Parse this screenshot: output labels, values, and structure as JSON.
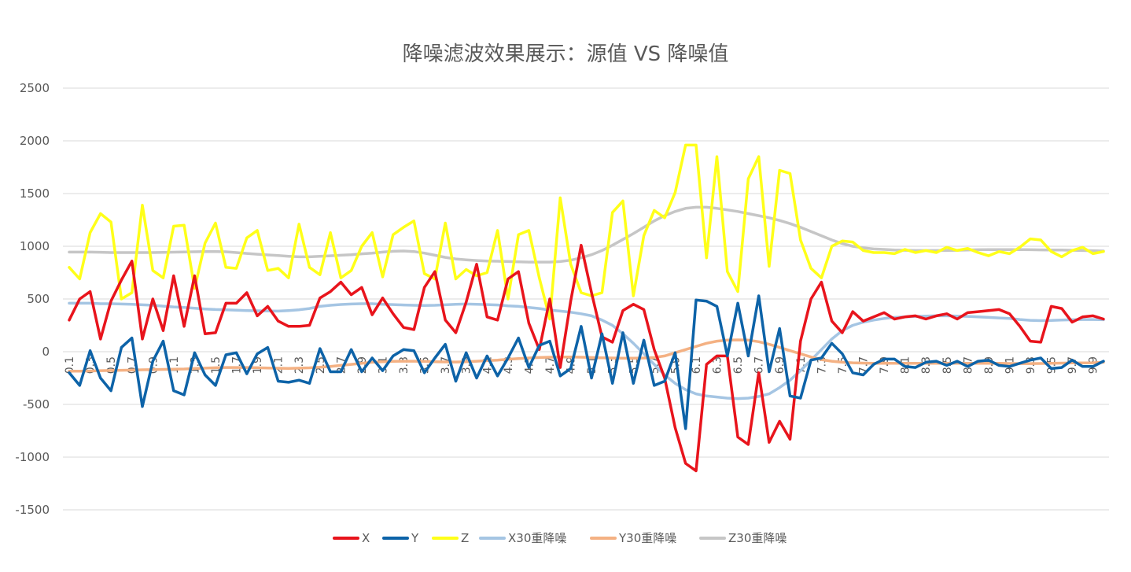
{
  "chart_data": {
    "type": "line",
    "title": "降噪滤波效果展示：源值 VS 降噪值",
    "xlabel": "",
    "ylabel": "",
    "ylim": [
      -1500,
      2500
    ],
    "yticks": [
      2500,
      2000,
      1500,
      1000,
      500,
      0,
      -500,
      -1000,
      -1500
    ],
    "grid": true,
    "legend_position": "bottom",
    "x": [
      0.1,
      0.2,
      0.3,
      0.4,
      0.5,
      0.6,
      0.7,
      0.8,
      0.9,
      1.0,
      1.1,
      1.2,
      1.3,
      1.4,
      1.5,
      1.6,
      1.7,
      1.8,
      1.9,
      2.0,
      2.1,
      2.2,
      2.3,
      2.4,
      2.5,
      2.6,
      2.7,
      2.8,
      2.9,
      3.0,
      3.1,
      3.2,
      3.3,
      3.4,
      3.5,
      3.6,
      3.7,
      3.8,
      3.9,
      4.0,
      4.1,
      4.2,
      4.3,
      4.4,
      4.5,
      4.6,
      4.7,
      4.8,
      4.9,
      5.0,
      5.1,
      5.2,
      5.3,
      5.4,
      5.5,
      5.6,
      5.7,
      5.8,
      5.9,
      6.0,
      6.1,
      6.2,
      6.3,
      6.4,
      6.5,
      6.6,
      6.7,
      6.8,
      6.9,
      7.0,
      7.1,
      7.2,
      7.3,
      7.4,
      7.5,
      7.6,
      7.7,
      7.8,
      7.9,
      8.0,
      8.1,
      8.2,
      8.3,
      8.4,
      8.5,
      8.6,
      8.7,
      8.8,
      8.9,
      9.0,
      9.1,
      9.2,
      9.3,
      9.4,
      9.5,
      9.6,
      9.7,
      9.8,
      9.9,
      10.0
    ],
    "x_tick_labels": [
      "0.1",
      "0.3",
      "0.5",
      "0.7",
      "0.9",
      "1.1",
      "1.3",
      "1.5",
      "1.7",
      "1.9",
      "2.1",
      "2.3",
      "2.5",
      "2.7",
      "2.9",
      "3.1",
      "3.3",
      "3.5",
      "3.7",
      "3.9",
      "4.1",
      "4.3",
      "4.5",
      "4.7",
      "4.9",
      "5.1",
      "5.3",
      "5.5",
      "5.7",
      "5.9",
      "6.1",
      "6.3",
      "6.5",
      "6.7",
      "6.9",
      "7.1",
      "7.3",
      "7.5",
      "7.7",
      "7.9",
      "8.1",
      "8.3",
      "8.5",
      "8.7",
      "8.9",
      "9.1",
      "9.3",
      "9.5",
      "9.7",
      "9.9"
    ],
    "series": [
      {
        "name": "X",
        "color": "#e8141c",
        "width": 3.5,
        "values": [
          300,
          500,
          570,
          120,
          480,
          680,
          860,
          120,
          500,
          200,
          720,
          240,
          720,
          170,
          180,
          460,
          460,
          560,
          340,
          430,
          290,
          240,
          240,
          250,
          510,
          570,
          660,
          540,
          610,
          350,
          510,
          360,
          230,
          210,
          610,
          760,
          300,
          180,
          470,
          830,
          330,
          300,
          690,
          760,
          270,
          20,
          500,
          -150,
          480,
          1010,
          560,
          140,
          90,
          390,
          450,
          400,
          20,
          -250,
          -720,
          -1060,
          -1130,
          -120,
          -40,
          -40,
          -810,
          -880,
          -200,
          -860,
          -660,
          -830,
          100,
          500,
          660,
          290,
          180,
          380,
          290,
          330,
          370,
          310,
          330,
          340,
          310,
          340,
          360,
          310,
          370,
          380,
          390,
          400,
          360,
          240,
          100,
          90,
          430,
          410,
          280,
          330,
          340,
          310
        ]
      },
      {
        "name": "Y",
        "color": "#0d63a8",
        "width": 3.5,
        "values": [
          -200,
          -320,
          10,
          -250,
          -370,
          40,
          130,
          -520,
          -90,
          100,
          -370,
          -410,
          -10,
          -220,
          -320,
          -30,
          -10,
          -210,
          -20,
          40,
          -280,
          -290,
          -270,
          -300,
          30,
          -190,
          -190,
          20,
          -190,
          -60,
          -180,
          -40,
          20,
          10,
          -200,
          -60,
          70,
          -280,
          -10,
          -250,
          -40,
          -230,
          -60,
          130,
          -150,
          60,
          100,
          -230,
          -160,
          240,
          -250,
          170,
          -300,
          180,
          -300,
          110,
          -320,
          -280,
          -10,
          -730,
          490,
          480,
          430,
          -40,
          460,
          -40,
          530,
          -190,
          220,
          -420,
          -440,
          -80,
          -60,
          80,
          -20,
          -200,
          -220,
          -120,
          -70,
          -70,
          -140,
          -150,
          -100,
          -90,
          -130,
          -90,
          -140,
          -90,
          -80,
          -130,
          -140,
          -110,
          -80,
          -60,
          -160,
          -150,
          -80,
          -140,
          -140,
          -90
        ]
      },
      {
        "name": "Z",
        "color": "#ffff19",
        "width": 3.5,
        "values": [
          800,
          690,
          1130,
          1310,
          1230,
          500,
          560,
          1390,
          770,
          700,
          1190,
          1200,
          600,
          1030,
          1220,
          800,
          790,
          1080,
          1150,
          770,
          790,
          700,
          1210,
          800,
          730,
          1130,
          700,
          770,
          1000,
          1130,
          710,
          1110,
          1180,
          1240,
          740,
          690,
          1220,
          690,
          780,
          720,
          750,
          1150,
          500,
          1110,
          1150,
          700,
          310,
          1460,
          830,
          560,
          530,
          560,
          1320,
          1430,
          530,
          1100,
          1340,
          1270,
          1510,
          1960,
          1960,
          890,
          1850,
          760,
          570,
          1640,
          1850,
          810,
          1720,
          1690,
          1060,
          790,
          700,
          1000,
          1050,
          1040,
          960,
          940,
          940,
          930,
          970,
          940,
          960,
          940,
          990,
          960,
          980,
          940,
          910,
          950,
          930,
          990,
          1070,
          1060,
          950,
          900,
          960,
          990,
          930,
          950
        ]
      },
      {
        "name": "X30重降噪",
        "color": "#a5c5e3",
        "width": 3.5,
        "values": [
          460,
          460,
          460,
          455,
          455,
          452,
          450,
          445,
          440,
          432,
          425,
          420,
          412,
          405,
          400,
          397,
          393,
          390,
          388,
          386,
          385,
          390,
          398,
          410,
          430,
          440,
          448,
          452,
          455,
          455,
          450,
          447,
          443,
          440,
          438,
          440,
          445,
          450,
          452,
          450,
          447,
          443,
          435,
          430,
          420,
          410,
          395,
          385,
          375,
          360,
          340,
          300,
          250,
          170,
          80,
          -20,
          -120,
          -220,
          -300,
          -360,
          -400,
          -420,
          -430,
          -440,
          -445,
          -440,
          -425,
          -400,
          -340,
          -270,
          -180,
          -80,
          20,
          120,
          200,
          250,
          280,
          300,
          315,
          325,
          330,
          335,
          338,
          340,
          340,
          338,
          335,
          330,
          325,
          320,
          315,
          305,
          298,
          295,
          296,
          300,
          303,
          305,
          305,
          303
        ]
      },
      {
        "name": "Y30重降噪",
        "color": "#f4b183",
        "width": 3.5,
        "values": [
          -185,
          -185,
          -183,
          -180,
          -178,
          -176,
          -175,
          -172,
          -170,
          -168,
          -166,
          -164,
          -160,
          -156,
          -152,
          -150,
          -150,
          -150,
          -152,
          -155,
          -157,
          -158,
          -156,
          -153,
          -148,
          -140,
          -130,
          -120,
          -110,
          -100,
          -95,
          -92,
          -90,
          -90,
          -92,
          -95,
          -97,
          -98,
          -95,
          -90,
          -85,
          -80,
          -72,
          -65,
          -60,
          -55,
          -52,
          -50,
          -50,
          -52,
          -55,
          -58,
          -60,
          -62,
          -62,
          -60,
          -55,
          -40,
          -10,
          20,
          50,
          80,
          100,
          110,
          112,
          110,
          95,
          70,
          40,
          10,
          -20,
          -50,
          -75,
          -90,
          -100,
          -105,
          -108,
          -110,
          -110,
          -110,
          -110,
          -110,
          -110,
          -110,
          -110,
          -110,
          -110,
          -110,
          -110,
          -110,
          -112,
          -113,
          -113,
          -112,
          -110,
          -108,
          -107,
          -106,
          -105,
          -100
        ]
      },
      {
        "name": "Z30重降噪",
        "color": "#c6c6c6",
        "width": 3.5,
        "values": [
          945,
          945,
          945,
          943,
          940,
          940,
          940,
          940,
          940,
          942,
          944,
          946,
          948,
          950,
          950,
          948,
          940,
          932,
          925,
          918,
          912,
          905,
          900,
          900,
          905,
          910,
          915,
          920,
          928,
          935,
          945,
          952,
          955,
          950,
          935,
          915,
          895,
          880,
          872,
          865,
          860,
          858,
          855,
          853,
          850,
          850,
          850,
          855,
          868,
          890,
          920,
          960,
          1010,
          1065,
          1120,
          1180,
          1240,
          1290,
          1330,
          1360,
          1370,
          1370,
          1360,
          1345,
          1330,
          1310,
          1290,
          1270,
          1245,
          1215,
          1180,
          1140,
          1100,
          1060,
          1025,
          1000,
          985,
          975,
          970,
          965,
          962,
          960,
          960,
          960,
          960,
          962,
          965,
          967,
          968,
          968,
          968,
          968,
          967,
          966,
          965,
          964,
          962,
          960,
          958,
          955
        ]
      }
    ]
  }
}
